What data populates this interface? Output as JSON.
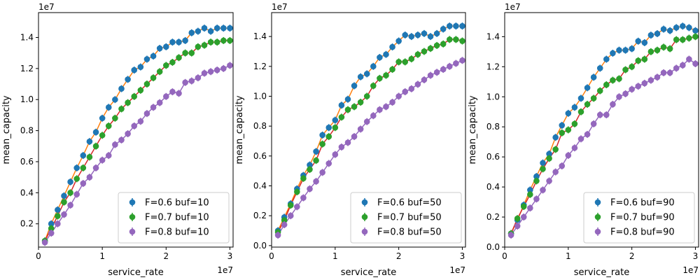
{
  "chart_data": [
    {
      "type": "scatter",
      "xlabel": "service_rate",
      "ylabel": "mean_capacity",
      "x_exponent_label": "1e7",
      "y_exponent_label": "1e7",
      "xlim": [
        0,
        3.05
      ],
      "ylim": [
        0.05,
        1.56
      ],
      "xticks": [
        0,
        1,
        2,
        3
      ],
      "xtick_labels": [
        "0",
        "1",
        "2",
        "3"
      ],
      "yticks": [
        0.2,
        0.4,
        0.6,
        0.8,
        1.0,
        1.2,
        1.4
      ],
      "ytick_labels": [
        "0.2",
        "0.4",
        "0.6",
        "0.8",
        "1.0",
        "1.2",
        "1.4"
      ],
      "legend_position": "lower-right",
      "x": [
        0.1,
        0.2,
        0.3,
        0.4,
        0.5,
        0.6,
        0.7,
        0.8,
        0.9,
        1.0,
        1.1,
        1.2,
        1.3,
        1.4,
        1.5,
        1.6,
        1.7,
        1.8,
        1.9,
        2.0,
        2.1,
        2.2,
        2.3,
        2.4,
        2.5,
        2.6,
        2.7,
        2.8,
        2.9,
        3.0
      ],
      "series": [
        {
          "name": "F=0.6 buf=10",
          "color": "#1f77b4",
          "line_color": "#ff7f0e",
          "values": [
            0.09,
            0.2,
            0.29,
            0.38,
            0.47,
            0.56,
            0.64,
            0.73,
            0.79,
            0.88,
            0.95,
            1.0,
            1.07,
            1.13,
            1.19,
            1.21,
            1.26,
            1.28,
            1.33,
            1.34,
            1.37,
            1.37,
            1.38,
            1.43,
            1.44,
            1.46,
            1.44,
            1.46,
            1.46,
            1.46
          ]
        },
        {
          "name": "F=0.7 buf=10",
          "color": "#2ca02c",
          "line_color": "#d62728",
          "values": [
            0.09,
            0.17,
            0.25,
            0.34,
            0.4,
            0.49,
            0.56,
            0.63,
            0.7,
            0.77,
            0.83,
            0.88,
            0.94,
            0.98,
            1.02,
            1.06,
            1.1,
            1.14,
            1.18,
            1.22,
            1.24,
            1.27,
            1.3,
            1.3,
            1.34,
            1.35,
            1.37,
            1.37,
            1.38,
            1.38
          ]
        },
        {
          "name": "F=0.8 buf=10",
          "color": "#9467bd",
          "line_color": "#9467bd",
          "values": [
            0.08,
            0.14,
            0.2,
            0.26,
            0.32,
            0.39,
            0.46,
            0.5,
            0.56,
            0.61,
            0.64,
            0.71,
            0.74,
            0.78,
            0.83,
            0.86,
            0.91,
            0.95,
            0.98,
            1.02,
            1.05,
            1.04,
            1.11,
            1.12,
            1.14,
            1.17,
            1.18,
            1.19,
            1.2,
            1.22
          ]
        }
      ]
    },
    {
      "type": "scatter",
      "xlabel": "service_rate",
      "ylabel": "mean_capacity",
      "x_exponent_label": "1e7",
      "y_exponent_label": "1e7",
      "xlim": [
        0,
        3.05
      ],
      "ylim": [
        -0.01,
        1.56
      ],
      "xticks": [
        0,
        1,
        2,
        3
      ],
      "xtick_labels": [
        "0",
        "1",
        "2",
        "3"
      ],
      "yticks": [
        0.0,
        0.2,
        0.4,
        0.6,
        0.8,
        1.0,
        1.2,
        1.4
      ],
      "ytick_labels": [
        "0.0",
        "0.2",
        "0.4",
        "0.6",
        "0.8",
        "1.0",
        "1.2",
        "1.4"
      ],
      "legend_position": "lower-right",
      "x": [
        0.1,
        0.2,
        0.3,
        0.4,
        0.5,
        0.6,
        0.7,
        0.8,
        0.9,
        1.0,
        1.1,
        1.2,
        1.3,
        1.4,
        1.5,
        1.6,
        1.7,
        1.8,
        1.9,
        2.0,
        2.1,
        2.2,
        2.3,
        2.4,
        2.5,
        2.6,
        2.7,
        2.8,
        2.9,
        3.0
      ],
      "series": [
        {
          "name": "F=0.6 buf=50",
          "color": "#1f77b4",
          "line_color": "#ff7f0e",
          "values": [
            0.1,
            0.19,
            0.28,
            0.38,
            0.47,
            0.54,
            0.63,
            0.74,
            0.79,
            0.84,
            0.94,
            0.98,
            1.07,
            1.13,
            1.15,
            1.2,
            1.26,
            1.28,
            1.33,
            1.37,
            1.41,
            1.4,
            1.41,
            1.42,
            1.4,
            1.42,
            1.45,
            1.47,
            1.47,
            1.47
          ]
        },
        {
          "name": "F=0.7 buf=50",
          "color": "#2ca02c",
          "line_color": "#d62728",
          "values": [
            0.09,
            0.17,
            0.27,
            0.36,
            0.45,
            0.51,
            0.57,
            0.68,
            0.73,
            0.79,
            0.86,
            0.91,
            0.93,
            0.96,
            1.0,
            1.07,
            1.12,
            1.14,
            1.18,
            1.23,
            1.23,
            1.25,
            1.28,
            1.3,
            1.32,
            1.34,
            1.35,
            1.38,
            1.38,
            1.37
          ]
        },
        {
          "name": "F=0.8 buf=50",
          "color": "#9467bd",
          "line_color": "#9467bd",
          "values": [
            0.07,
            0.14,
            0.2,
            0.26,
            0.32,
            0.38,
            0.43,
            0.49,
            0.55,
            0.61,
            0.66,
            0.69,
            0.73,
            0.78,
            0.83,
            0.87,
            0.91,
            0.93,
            0.96,
            1.0,
            1.03,
            1.05,
            1.08,
            1.11,
            1.14,
            1.16,
            1.18,
            1.2,
            1.22,
            1.24
          ]
        }
      ]
    },
    {
      "type": "scatter",
      "xlabel": "service_rate",
      "ylabel": "mean_capacity",
      "x_exponent_label": "1e7",
      "y_exponent_label": "1e7",
      "xlim": [
        0,
        3.05
      ],
      "ylim": [
        0.0,
        1.56
      ],
      "xticks": [
        0,
        1,
        2,
        3
      ],
      "xtick_labels": [
        "0",
        "1",
        "2",
        "3"
      ],
      "yticks": [
        0.0,
        0.2,
        0.4,
        0.6,
        0.8,
        1.0,
        1.2,
        1.4
      ],
      "ytick_labels": [
        "0.0",
        "0.2",
        "0.4",
        "0.6",
        "0.8",
        "1.0",
        "1.2",
        "1.4"
      ],
      "legend_position": "lower-right",
      "x": [
        0.1,
        0.2,
        0.3,
        0.4,
        0.5,
        0.6,
        0.7,
        0.8,
        0.9,
        1.0,
        1.1,
        1.2,
        1.3,
        1.4,
        1.5,
        1.6,
        1.7,
        1.8,
        1.9,
        2.0,
        2.1,
        2.2,
        2.3,
        2.4,
        2.5,
        2.6,
        2.7,
        2.8,
        2.9,
        3.0
      ],
      "series": [
        {
          "name": "F=0.6 buf=90",
          "color": "#1f77b4",
          "line_color": "#ff7f0e",
          "values": [
            0.09,
            0.18,
            0.28,
            0.38,
            0.47,
            0.56,
            0.62,
            0.73,
            0.81,
            0.89,
            0.93,
            0.99,
            1.06,
            1.13,
            1.19,
            1.25,
            1.29,
            1.31,
            1.31,
            1.32,
            1.37,
            1.36,
            1.41,
            1.42,
            1.45,
            1.44,
            1.46,
            1.47,
            1.46,
            1.44
          ]
        },
        {
          "name": "F=0.7 buf=90",
          "color": "#2ca02c",
          "line_color": "#d62728",
          "values": [
            0.09,
            0.19,
            0.27,
            0.35,
            0.44,
            0.52,
            0.59,
            0.65,
            0.76,
            0.78,
            0.82,
            0.9,
            0.95,
            0.99,
            1.04,
            1.08,
            1.11,
            1.12,
            1.18,
            1.2,
            1.24,
            1.25,
            1.3,
            1.31,
            1.33,
            1.32,
            1.38,
            1.38,
            1.39,
            1.4
          ]
        },
        {
          "name": "F=0.8 buf=90",
          "color": "#9467bd",
          "line_color": "#9467bd",
          "values": [
            0.08,
            0.14,
            0.2,
            0.26,
            0.32,
            0.38,
            0.44,
            0.5,
            0.54,
            0.61,
            0.66,
            0.72,
            0.75,
            0.82,
            0.88,
            0.88,
            0.95,
            1.0,
            1.02,
            1.05,
            1.07,
            1.09,
            1.11,
            1.13,
            1.16,
            1.16,
            1.19,
            1.21,
            1.25,
            1.22
          ]
        }
      ]
    }
  ]
}
